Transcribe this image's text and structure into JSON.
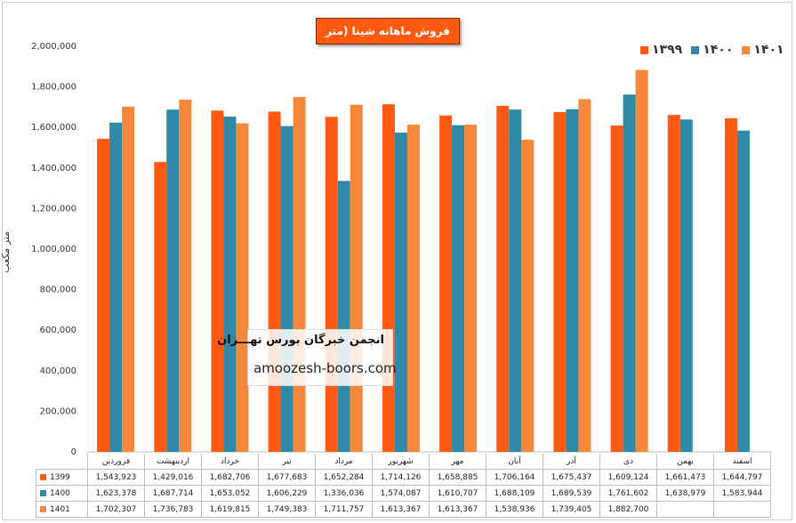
{
  "chart_data": {
    "type": "bar",
    "title": "فروش ماهانه شینا (متر مکعب)",
    "ylabel": "متر مکعب",
    "ylim": [
      0,
      2000000
    ],
    "yticks": [
      "0",
      "200,000",
      "400,000",
      "600,000",
      "800,000",
      "1,000,000",
      "1,200,000",
      "1,400,000",
      "1,600,000",
      "1,800,000",
      "2,000,000"
    ],
    "legend_position": "top-right",
    "categories": [
      "فروردین",
      "اردیبهشت",
      "خرداد",
      "تیر",
      "مرداد",
      "شهریور",
      "مهر",
      "آبان",
      "آذر",
      "دی",
      "بهمن",
      "اسفند"
    ],
    "series": [
      {
        "name": "1399",
        "legend_label": "۱۳۹۹",
        "color": "#ff5a12",
        "values": [
          1543923,
          1429016,
          1682706,
          1677683,
          1652284,
          1714126,
          1658885,
          1706164,
          1675437,
          1609124,
          1661473,
          1644797
        ],
        "labels": [
          "1,543,923",
          "1,429,016",
          "1,682,706",
          "1,677,683",
          "1,652,284",
          "1,714,126",
          "1,658,885",
          "1,706,164",
          "1,675,437",
          "1,609,124",
          "1,661,473",
          "1,644,797"
        ]
      },
      {
        "name": "1400",
        "legend_label": "۱۴۰۰",
        "color": "#2e8aa7",
        "values": [
          1623378,
          1687714,
          1653052,
          1606229,
          1336036,
          1574087,
          1610707,
          1688109,
          1689539,
          1761602,
          1638979,
          1583944
        ],
        "labels": [
          "1,623,378",
          "1,687,714",
          "1,653,052",
          "1,606,229",
          "1,336,036",
          "1,574,087",
          "1,610,707",
          "1,688,109",
          "1,689,539",
          "1,761,602",
          "1,638,979",
          "1,583,944"
        ]
      },
      {
        "name": "1401",
        "legend_label": "۱۴۰۱",
        "color": "#f5883a",
        "values": [
          1702307,
          1736783,
          1619815,
          1749383,
          1711757,
          1613367,
          1613367,
          1538936,
          1739405,
          1882700,
          null,
          null
        ],
        "labels": [
          "1,702,307",
          "1,736,783",
          "1,619,815",
          "1,749,383",
          "1,711,757",
          "1,613,367",
          "1,613,367",
          "1,538,936",
          "1,739,405",
          "1,882,700",
          "",
          ""
        ]
      }
    ],
    "grid": false
  },
  "watermark": {
    "line1": "انجمن خبرگان بورس تهـــران",
    "line2": "amoozesh-boors.com"
  }
}
